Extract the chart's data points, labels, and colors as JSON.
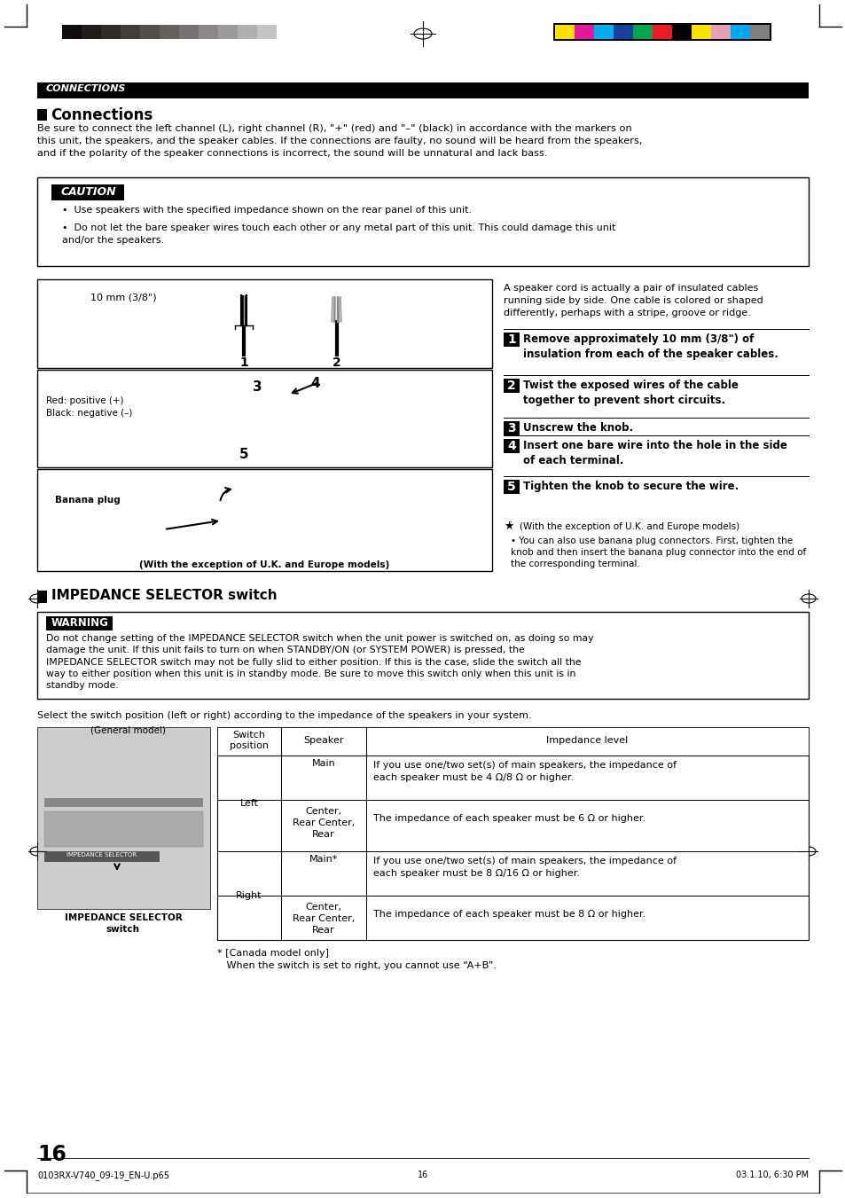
{
  "page_bg": "#ffffff",
  "gray_bar_colors": [
    "#100e0c",
    "#201d1a",
    "#302c29",
    "#413d39",
    "#524e4a",
    "#64605d",
    "#777372",
    "#8a8786",
    "#9d9b9a",
    "#b1afae",
    "#c5c3c3",
    "#ffffff"
  ],
  "color_bar_colors": [
    "#f9e200",
    "#e8189a",
    "#00adef",
    "#1c3f9e",
    "#00a650",
    "#ec1c24",
    "#000000",
    "#f9e200",
    "#e8a0b4",
    "#00a8f0",
    "#808080"
  ],
  "section_header_bg": "#000000",
  "section_header_text": "CONNECTIONS",
  "section_header_color": "#ffffff",
  "caution_text": "CAUTION",
  "warning_text": "WARNING",
  "title1": "Connections",
  "title2": "IMPEDANCE SELECTOR switch",
  "connections_body": "Be sure to connect the left channel (L), right channel (R), \"+\" (red) and \"–\" (black) in accordance with the markers on\nthis unit, the speakers, and the speaker cables. If the connections are faulty, no sound will be heard from the speakers,\nand if the polarity of the speaker connections is incorrect, the sound will be unnatural and lack bass.",
  "caution_bullet1": "Use speakers with the specified impedance shown on the rear panel of this unit.",
  "caution_bullet2": "Do not let the bare speaker wires touch each other or any metal part of this unit. This could damage this unit\nand/or the speakers.",
  "speaker_cord_text": "A speaker cord is actually a pair of insulated cables\nrunning side by side. One cable is colored or shaped\ndifferently, perhaps with a stripe, groove or ridge.",
  "step1_bold": "Remove approximately 10 mm (3/8\") of\ninsulation from each of the speaker cables.",
  "step2_bold": "Twist the exposed wires of the cable\ntogether to prevent short circuits.",
  "step3_bold": "Unscrew the knob.",
  "step4_bold": "Insert one bare wire into the hole in the side\nof each terminal.",
  "step5_bold": "Tighten the knob to secure the wire.",
  "note_text": "(With the exception of U.K. and Europe models)",
  "note_bullet": "You can also use banana plug connectors. First, tighten the\nknob and then insert the banana plug connector into the end of\nthe corresponding terminal.",
  "warning_body": "Do not change setting of the IMPEDANCE SELECTOR switch when the unit power is switched on, as doing so may\ndamage the unit. If this unit fails to turn on when STANDBY/ON (or SYSTEM POWER) is pressed, the\nIMPEDANCE SELECTOR switch may not be fully slid to either position. If this is the case, slide the switch all the\nway to either position when this unit is in standby mode. Be sure to move this switch only when this unit is in\nstandby mode.",
  "select_text": "Select the switch position (left or right) according to the impedance of the speakers in your system.",
  "general_model_label": "(General model)",
  "impedance_selector_label": "IMPEDANCE SELECTOR\nswitch",
  "table_headers": [
    "Switch\nposition",
    "Speaker",
    "Impedance level"
  ],
  "footnote_star": "* [Canada model only]",
  "footnote_line2": "   When the switch is set to right, you cannot use “A+B”.",
  "page_number": "16",
  "bottom_left": "0103RX-V740_09-19_EN-U.p65",
  "bottom_center": "16",
  "bottom_right": "03.1.10, 6:30 PM",
  "red_plug_label": "Red: positive (+)\nBlack: negative (–)",
  "banana_plug_label": "Banana plug",
  "banana_exception": "(With the exception of U.K. and Europe models)",
  "wire_label": "10 mm (3/8\")"
}
